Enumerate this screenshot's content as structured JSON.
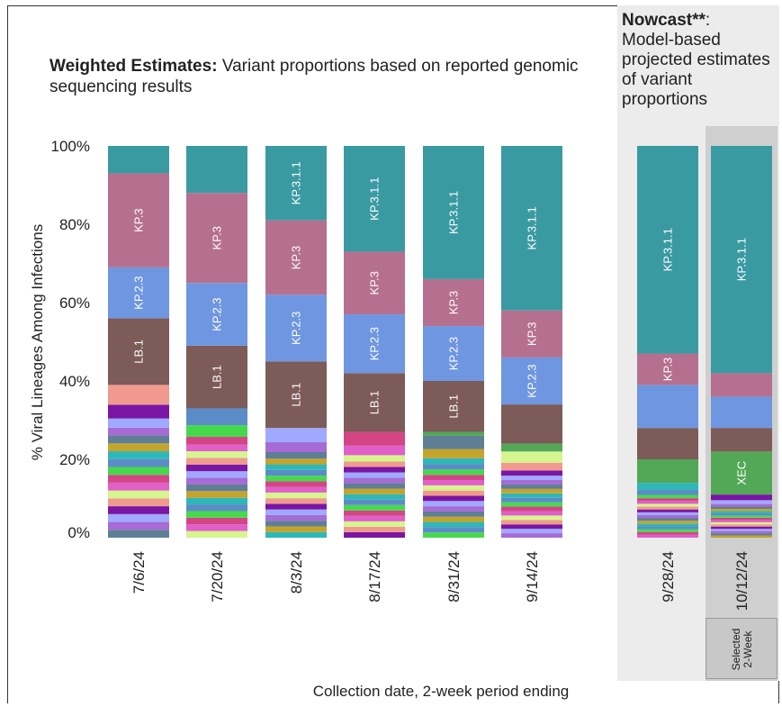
{
  "title": {
    "bold": "Weighted Estimates:",
    "rest": "Variant proportions based on reported genomic sequencing results"
  },
  "nowcast": {
    "bold": "Nowcast**",
    "colon": ":",
    "text": "Model-based projected estimates of variant proportions"
  },
  "selected_label": {
    "line1": "Selected",
    "line2": "2-Week"
  },
  "chart_data": {
    "type": "bar",
    "stacked": true,
    "ylabel": "% Viral Lineages Among Infections",
    "xlabel": "Collection date, 2-week period ending",
    "ylim": [
      0,
      100
    ],
    "yticks": [
      "0%",
      "20%",
      "40%",
      "60%",
      "80%",
      "100%"
    ],
    "categories": [
      "7/6/24",
      "7/20/24",
      "8/3/24",
      "8/17/24",
      "8/31/24",
      "9/14/24",
      "9/28/24",
      "10/12/24"
    ],
    "nowcast_categories": [
      "9/28/24",
      "10/12/24"
    ],
    "colors": {
      "KP.3.1.1": "#3a9aa2",
      "KP.3": "#b6708f",
      "KP.2.3": "#6f96e0",
      "LB.1": "#7c5b58",
      "XEC": "#52a856",
      "other": [
        "#5e7f96",
        "#d5f58f",
        "#2fb7b7",
        "#7a16a3",
        "#47d94d",
        "#a66bd4",
        "#e05fc8",
        "#c4a42a",
        "#f09a8f",
        "#5b8cc7",
        "#9fa9ff",
        "#d34585"
      ]
    },
    "series": [
      {
        "name": "KP.3.1.1",
        "values": [
          7,
          12,
          19,
          27,
          34,
          42,
          53,
          58
        ]
      },
      {
        "name": "KP.3",
        "values": [
          24,
          23,
          19,
          16,
          12,
          12,
          8,
          6
        ]
      },
      {
        "name": "KP.2.3",
        "values": [
          13,
          16,
          17,
          15,
          14,
          12,
          11,
          8
        ]
      },
      {
        "name": "LB.1",
        "values": [
          17,
          16,
          17,
          15,
          13,
          10,
          8,
          6
        ]
      },
      {
        "name": "XEC",
        "values": [
          0,
          0,
          0,
          0,
          1,
          2,
          6,
          11
        ]
      }
    ],
    "bar_labels": [
      [
        "",
        "KP.3",
        "KP.2.3",
        "LB.1"
      ],
      [
        "",
        "KP.3",
        "KP.2.3",
        "LB.1"
      ],
      [
        "KP.3.1.1",
        "KP.3",
        "KP.2.3",
        "LB.1"
      ],
      [
        "KP.3.1.1",
        "KP.3",
        "KP.2.3",
        "LB.1"
      ],
      [
        "KP.3.1.1",
        "KP.3",
        "KP.2.3",
        "LB.1"
      ],
      [
        "KP.3.1.1",
        "KP.3",
        "KP.2.3",
        ""
      ],
      [
        "KP.3.1.1",
        "KP.3",
        "",
        ""
      ],
      [
        "KP.3.1.1",
        "",
        "",
        "",
        "XEC"
      ]
    ]
  }
}
